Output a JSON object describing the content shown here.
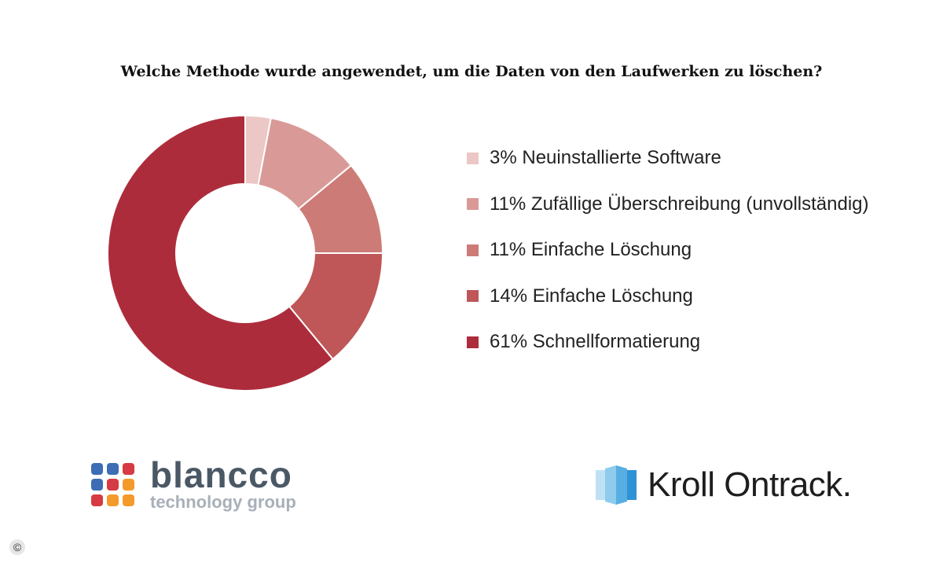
{
  "chart_data": {
    "type": "pie",
    "title": "Welche Methode wurde angewendet, um die Daten von den Laufwerken zu löschen?",
    "donut": true,
    "legend_position": "right",
    "slices": [
      {
        "label": "3% Neuinstallierte Software",
        "value": 3,
        "color": "#ebc7c5"
      },
      {
        "label": "11% Zufällige Überschreibung (unvollständig)",
        "value": 11,
        "color": "#d99a97"
      },
      {
        "label": "11% Einfache Löschung",
        "value": 11,
        "color": "#cd7b77"
      },
      {
        "label": "14% Einfache Löschung",
        "value": 14,
        "color": "#bf5657"
      },
      {
        "label": "61% Schnellformatierung",
        "value": 61,
        "color": "#ad2c3b"
      }
    ]
  },
  "logos": {
    "blancco": {
      "name": "blancco",
      "subtitle": "technology group",
      "dot_colors": [
        "#3d6db4",
        "#3d6db4",
        "#d63a43",
        "#3d6db4",
        "#d63a43",
        "#f39a2a",
        "#d63a43",
        "#f39a2a",
        "#f39a2a"
      ]
    },
    "kroll": {
      "name": "Kroll Ontrack."
    }
  },
  "copyright_symbol": "©"
}
